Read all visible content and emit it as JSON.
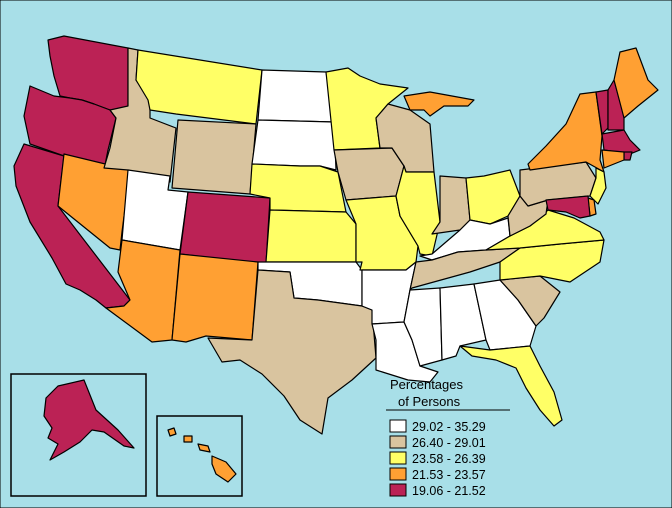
{
  "legend": {
    "title_line1": "Percentages",
    "title_line2": "of Persons",
    "classes": [
      {
        "label": "29.02 - 35.29",
        "color": "#ffffff"
      },
      {
        "label": "26.40 - 29.01",
        "color": "#d9c49f"
      },
      {
        "label": "23.58 - 26.39",
        "color": "#ffff66"
      },
      {
        "label": "21.53 - 23.57",
        "color": "#ffa033"
      },
      {
        "label": "19.06 - 21.52",
        "color": "#bb2255"
      }
    ]
  },
  "colors": {
    "ocean": "#a8dfe8",
    "border": "#000000"
  },
  "states": {
    "WA": 4,
    "OR": 4,
    "CA": 4,
    "NV": 3,
    "ID": 1,
    "MT": 2,
    "WY": 1,
    "UT": 0,
    "AZ": 3,
    "CO": 4,
    "NM": 3,
    "ND": 0,
    "SD": 0,
    "NE": 2,
    "KS": 2,
    "OK": 0,
    "TX": 1,
    "MN": 2,
    "IA": 1,
    "MO": 2,
    "AR": 0,
    "LA": 0,
    "WI": 1,
    "IL": 2,
    "MI": 3,
    "IN": 1,
    "OH": 2,
    "KY": 0,
    "TN": 1,
    "MS": 0,
    "AL": 0,
    "GA": 0,
    "FL": 2,
    "SC": 1,
    "NC": 2,
    "VA": 2,
    "WV": 1,
    "PA": 1,
    "NY": 3,
    "VT": 4,
    "NH": 4,
    "ME": 3,
    "MA": 4,
    "RI": 4,
    "CT": 3,
    "NJ": 2,
    "DE": 3,
    "MD": 4,
    "AK": 4,
    "HI": 3
  }
}
